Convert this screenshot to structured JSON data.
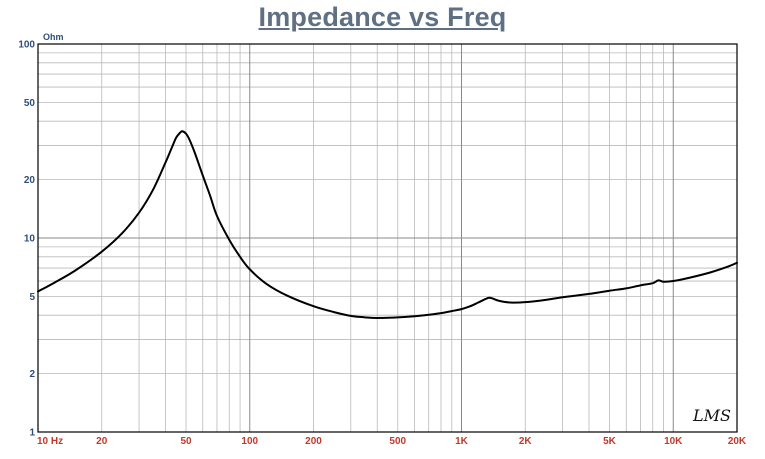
{
  "chart_data": {
    "type": "line",
    "title": "Impedance vs Freq",
    "ylabel": "Ohm",
    "xlabel": "",
    "x_scale": "log",
    "y_scale": "log",
    "xlim": [
      10,
      20000
    ],
    "ylim": [
      1,
      100
    ],
    "grid": true,
    "x_tick_labels": [
      {
        "value": 10,
        "label": "10 Hz"
      },
      {
        "value": 20,
        "label": "20"
      },
      {
        "value": 50,
        "label": "50"
      },
      {
        "value": 100,
        "label": "100"
      },
      {
        "value": 200,
        "label": "200"
      },
      {
        "value": 500,
        "label": "500"
      },
      {
        "value": 1000,
        "label": "1K"
      },
      {
        "value": 2000,
        "label": "2K"
      },
      {
        "value": 5000,
        "label": "5K"
      },
      {
        "value": 10000,
        "label": "10K"
      },
      {
        "value": 20000,
        "label": "20K"
      }
    ],
    "y_tick_labels": [
      {
        "value": 100,
        "label": "100"
      },
      {
        "value": 50,
        "label": "50"
      },
      {
        "value": 20,
        "label": "20"
      },
      {
        "value": 10,
        "label": "10"
      },
      {
        "value": 5,
        "label": "5"
      },
      {
        "value": 2,
        "label": "2"
      },
      {
        "value": 1,
        "label": "1"
      }
    ],
    "series": [
      {
        "color": "#000000",
        "points": [
          [
            10,
            5.3
          ],
          [
            12,
            5.9
          ],
          [
            15,
            6.8
          ],
          [
            20,
            8.5
          ],
          [
            25,
            10.6
          ],
          [
            30,
            13.5
          ],
          [
            35,
            17.8
          ],
          [
            40,
            24.5
          ],
          [
            43,
            29.5
          ],
          [
            45,
            33.0
          ],
          [
            47,
            35.0
          ],
          [
            48,
            35.5
          ],
          [
            50,
            34.5
          ],
          [
            52,
            32.0
          ],
          [
            55,
            27.5
          ],
          [
            60,
            21.0
          ],
          [
            65,
            16.5
          ],
          [
            70,
            13.0
          ],
          [
            80,
            9.8
          ],
          [
            90,
            8.0
          ],
          [
            100,
            6.9
          ],
          [
            120,
            5.8
          ],
          [
            150,
            5.05
          ],
          [
            200,
            4.45
          ],
          [
            250,
            4.15
          ],
          [
            300,
            3.97
          ],
          [
            350,
            3.9
          ],
          [
            400,
            3.87
          ],
          [
            500,
            3.9
          ],
          [
            600,
            3.95
          ],
          [
            700,
            4.02
          ],
          [
            800,
            4.1
          ],
          [
            900,
            4.2
          ],
          [
            1000,
            4.3
          ],
          [
            1100,
            4.45
          ],
          [
            1200,
            4.65
          ],
          [
            1300,
            4.85
          ],
          [
            1350,
            4.92
          ],
          [
            1400,
            4.88
          ],
          [
            1500,
            4.75
          ],
          [
            1700,
            4.65
          ],
          [
            2000,
            4.67
          ],
          [
            2500,
            4.8
          ],
          [
            3000,
            4.95
          ],
          [
            4000,
            5.15
          ],
          [
            5000,
            5.35
          ],
          [
            6000,
            5.5
          ],
          [
            7000,
            5.7
          ],
          [
            8000,
            5.85
          ],
          [
            8500,
            6.05
          ],
          [
            9000,
            5.95
          ],
          [
            10000,
            6.0
          ],
          [
            12000,
            6.25
          ],
          [
            15000,
            6.65
          ],
          [
            18000,
            7.1
          ],
          [
            20000,
            7.45
          ]
        ]
      }
    ]
  },
  "watermark": "LMS"
}
